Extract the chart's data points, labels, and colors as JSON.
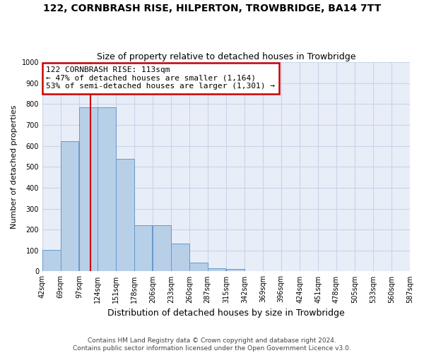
{
  "title": "122, CORNBRASH RISE, HILPERTON, TROWBRIDGE, BA14 7TT",
  "subtitle": "Size of property relative to detached houses in Trowbridge",
  "xlabel": "Distribution of detached houses by size in Trowbridge",
  "ylabel": "Number of detached properties",
  "footer_line1": "Contains HM Land Registry data © Crown copyright and database right 2024.",
  "footer_line2": "Contains public sector information licensed under the Open Government Licence v3.0.",
  "annotation_line1": "122 CORNBRASH RISE: 113sqm",
  "annotation_line2": "← 47% of detached houses are smaller (1,164)",
  "annotation_line3": "53% of semi-detached houses are larger (1,301) →",
  "property_size": 113,
  "bar_edges": [
    42,
    69,
    97,
    124,
    151,
    178,
    206,
    233,
    260,
    287,
    315,
    342,
    369,
    396,
    424,
    451,
    478,
    505,
    533,
    560,
    587
  ],
  "bar_values": [
    103,
    623,
    786,
    786,
    538,
    220,
    220,
    133,
    42,
    15,
    10,
    0,
    0,
    0,
    0,
    0,
    0,
    0,
    0,
    0
  ],
  "bar_color": "#b8cfe8",
  "bar_edge_color": "#6699cc",
  "red_line_color": "#cc0000",
  "annotation_box_color": "#cc0000",
  "grid_color": "#c8d4e8",
  "bg_color": "#e8eef8",
  "ylim": [
    0,
    1000
  ],
  "yticks": [
    0,
    100,
    200,
    300,
    400,
    500,
    600,
    700,
    800,
    900,
    1000
  ],
  "title_fontsize": 10,
  "subtitle_fontsize": 9,
  "ylabel_fontsize": 8,
  "xlabel_fontsize": 9,
  "tick_fontsize": 7,
  "footer_fontsize": 6.5,
  "annotation_fontsize": 8
}
